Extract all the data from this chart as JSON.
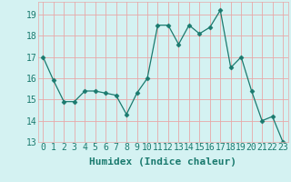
{
  "x": [
    0,
    1,
    2,
    3,
    4,
    5,
    6,
    7,
    8,
    9,
    10,
    11,
    12,
    13,
    14,
    15,
    16,
    17,
    18,
    19,
    20,
    21,
    22,
    23
  ],
  "y": [
    17.0,
    15.9,
    14.9,
    14.9,
    15.4,
    15.4,
    15.3,
    15.2,
    14.3,
    15.3,
    16.0,
    18.5,
    18.5,
    17.6,
    18.5,
    18.1,
    18.4,
    19.2,
    16.5,
    17.0,
    15.4,
    14.0,
    14.2,
    13.0
  ],
  "xlabel": "Humidex (Indice chaleur)",
  "ylim": [
    13,
    19.6
  ],
  "yticks": [
    13,
    14,
    15,
    16,
    17,
    18,
    19
  ],
  "bg_color": "#d4f2f2",
  "grid_color": "#e8a8a8",
  "line_color": "#1a7a6e",
  "marker_color": "#1a7a6e",
  "font_color": "#1a7a6e",
  "tick_fontsize": 7,
  "xlabel_fontsize": 8
}
